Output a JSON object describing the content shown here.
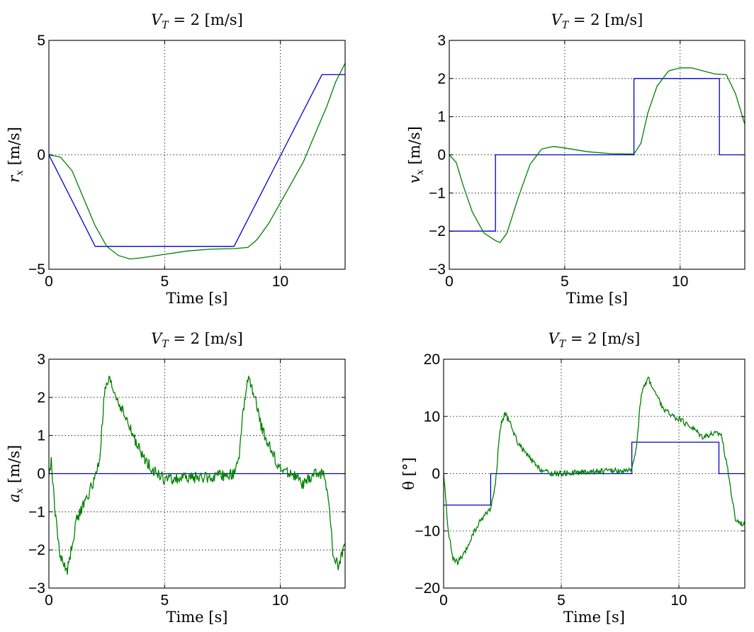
{
  "chart_data": [
    {
      "type": "line",
      "title": "V_T = 2 [m/s]",
      "xlabel": "Time [s]",
      "ylabel": "r_x [m/s]",
      "xlim": [
        0,
        12.8
      ],
      "ylim": [
        -5,
        5
      ],
      "xticks": [
        0,
        5,
        10
      ],
      "yticks": [
        -5,
        0,
        5
      ],
      "grid": true,
      "series": [
        {
          "color": "#0000cc",
          "x": [
            0,
            2,
            8,
            11.8,
            12.8
          ],
          "y": [
            0,
            -4,
            -4,
            3.5,
            3.5
          ]
        },
        {
          "color": "#008000",
          "x": [
            0,
            0.5,
            1,
            1.5,
            2,
            2.5,
            3,
            3.5,
            4,
            5,
            6,
            7,
            8,
            8.6,
            9,
            9.5,
            10,
            10.5,
            11,
            11.5,
            12,
            12.4,
            12.8
          ],
          "y": [
            0,
            -0.1,
            -0.7,
            -1.9,
            -3.1,
            -4,
            -4.4,
            -4.55,
            -4.5,
            -4.35,
            -4.2,
            -4.12,
            -4.1,
            -4.05,
            -3.7,
            -3,
            -2.1,
            -1.2,
            -0.3,
            0.9,
            2.1,
            3.2,
            4
          ]
        }
      ]
    },
    {
      "type": "line",
      "title": "V_T = 2 [m/s]",
      "xlabel": "Time [s]",
      "ylabel": "v_x [m/s]",
      "xlim": [
        0,
        12.8
      ],
      "ylim": [
        -3,
        3
      ],
      "xticks": [
        0,
        5,
        10
      ],
      "yticks": [
        -3,
        -2,
        -1,
        0,
        1,
        2,
        3
      ],
      "grid": true,
      "series": [
        {
          "color": "#0000cc",
          "x": [
            0,
            2,
            2,
            8,
            8,
            11.7,
            11.7,
            12.8
          ],
          "y": [
            -2,
            -2,
            0,
            0,
            2,
            2,
            0,
            0
          ]
        },
        {
          "color": "#008000",
          "x": [
            0,
            0.3,
            0.6,
            1,
            1.5,
            2,
            2.2,
            2.5,
            3,
            3.5,
            4,
            4.5,
            5,
            6,
            7,
            8,
            8.3,
            8.6,
            9,
            9.5,
            10,
            10.5,
            11,
            11.5,
            12,
            12.4,
            12.8
          ],
          "y": [
            0,
            -0.2,
            -0.8,
            -1.5,
            -2.05,
            -2.25,
            -2.3,
            -2.05,
            -1.1,
            -0.25,
            0.15,
            0.22,
            0.18,
            0.08,
            0.03,
            0.02,
            0.3,
            1.1,
            1.8,
            2.2,
            2.28,
            2.28,
            2.2,
            2.12,
            2.1,
            1.6,
            0.8
          ]
        }
      ]
    },
    {
      "type": "line",
      "title": "V_T = 2 [m/s]",
      "xlabel": "Time [s]",
      "ylabel": "a_x [m/s]",
      "xlim": [
        0,
        12.8
      ],
      "ylim": [
        -3,
        3
      ],
      "xticks": [
        0,
        5,
        10
      ],
      "yticks": [
        -3,
        -2,
        -1,
        0,
        1,
        2,
        3
      ],
      "grid": true,
      "series": [
        {
          "color": "#0000cc",
          "x": [
            0,
            12.8
          ],
          "y": [
            0,
            0
          ]
        },
        {
          "color": "#008000",
          "noise": 0.15,
          "x": [
            0,
            0.1,
            0.3,
            0.5,
            0.8,
            1.2,
            1.6,
            2,
            2.2,
            2.4,
            2.6,
            3,
            3.5,
            4,
            4.5,
            5,
            6,
            7,
            8,
            8.2,
            8.4,
            8.6,
            8.8,
            9.2,
            9.6,
            10,
            10.5,
            11,
            11.5,
            11.9,
            12.1,
            12.3,
            12.5,
            12.8
          ],
          "y": [
            0,
            0.3,
            -1.2,
            -2.2,
            -2.55,
            -1.2,
            -0.7,
            -0.1,
            0.4,
            2.1,
            2.45,
            1.9,
            1.2,
            0.5,
            0.1,
            -0.15,
            -0.1,
            -0.1,
            0,
            0.3,
            1.7,
            2.45,
            2.2,
            1.2,
            0.6,
            0.1,
            0,
            -0.3,
            0,
            0,
            -0.8,
            -2.2,
            -2.4,
            -1.9
          ]
        }
      ]
    },
    {
      "type": "line",
      "title": "V_T = 2 [m/s]",
      "xlabel": "Time [s]",
      "ylabel": "θ [°]",
      "xlim": [
        0,
        12.8
      ],
      "ylim": [
        -20,
        20
      ],
      "xticks": [
        0,
        5,
        10
      ],
      "yticks": [
        -20,
        -10,
        0,
        10,
        20
      ],
      "grid": true,
      "series": [
        {
          "color": "#0000cc",
          "x": [
            0,
            2,
            2,
            8,
            8,
            11.7,
            11.7,
            12.8
          ],
          "y": [
            -5.5,
            -5.5,
            0,
            0,
            5.5,
            5.5,
            0,
            0
          ]
        },
        {
          "color": "#008000",
          "noise": 0.5,
          "x": [
            0,
            0.2,
            0.4,
            0.6,
            0.9,
            1.2,
            1.6,
            2,
            2.2,
            2.4,
            2.6,
            2.8,
            3.2,
            3.6,
            4,
            4.5,
            5,
            6,
            7,
            8,
            8.2,
            8.4,
            8.7,
            9,
            9.4,
            9.8,
            10.2,
            10.6,
            11,
            11.4,
            11.8,
            12.1,
            12.4,
            12.8
          ],
          "y": [
            0,
            -10,
            -15,
            -15.5,
            -14,
            -11,
            -8,
            -6,
            -2,
            8,
            10.5,
            9,
            5,
            3,
            1,
            0,
            0,
            0.3,
            0.5,
            0.5,
            5,
            14,
            16.8,
            14,
            11,
            10,
            9,
            8,
            6.5,
            7,
            7,
            0,
            -8,
            -9
          ]
        }
      ]
    }
  ]
}
